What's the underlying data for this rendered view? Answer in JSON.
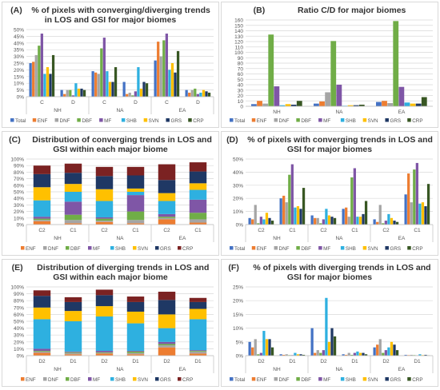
{
  "colors": {
    "Total": "#4472c4",
    "ENF": "#ed7d31",
    "DNF": "#a5a5a5",
    "DBF": "#70ad47",
    "MF": "#7f56a6",
    "SHB": "#2eb0e0",
    "SVN": "#ffc000",
    "GRS": "#1f3864",
    "CRP": "#385723",
    "CRP_stack": "#7b2222",
    "GRS_stack": "#203864"
  },
  "chart_data": [
    {
      "id": "A",
      "type": "bar",
      "title": "(A)    % of pixels with converging/diverging trends\nin LOS and GSI for major biomes",
      "categories": [
        "C",
        "D",
        "C",
        "D",
        "C",
        "D"
      ],
      "groups": [
        "NH",
        "NA",
        "EA"
      ],
      "ylim": [
        0,
        50
      ],
      "yticks": [
        "0%",
        "5%",
        "10%",
        "15%",
        "20%",
        "25%",
        "30%",
        "35%",
        "40%",
        "45%",
        "50%"
      ],
      "series": [
        {
          "name": "Total",
          "values": [
            25,
            5,
            19,
            11,
            27,
            5
          ]
        },
        {
          "name": "ENF",
          "values": [
            26,
            2,
            18,
            2,
            41,
            3
          ]
        },
        {
          "name": "DNF",
          "values": [
            31,
            5,
            17,
            3,
            30,
            5
          ]
        },
        {
          "name": "DBF",
          "values": [
            38,
            5,
            36,
            1,
            42,
            6
          ]
        },
        {
          "name": "MF",
          "values": [
            47,
            1,
            44,
            4,
            47,
            2
          ]
        },
        {
          "name": "SHB",
          "values": [
            17,
            10,
            19,
            22,
            20,
            3
          ]
        },
        {
          "name": "SVN",
          "values": [
            22,
            6,
            11,
            6,
            25,
            5
          ]
        },
        {
          "name": "GRS",
          "values": [
            17,
            6,
            11,
            11,
            18,
            4
          ]
        },
        {
          "name": "CRP",
          "values": [
            31,
            5,
            22,
            10,
            34,
            3
          ]
        }
      ],
      "legend": [
        "Total",
        "ENF",
        "DNF",
        "DBF",
        "MF",
        "SHB",
        "SVN",
        "GRS",
        "CRP"
      ]
    },
    {
      "id": "B",
      "type": "bar",
      "title": "(B)              Ratio C/D for major biomes",
      "categories": [
        "NH",
        "NA",
        "EA"
      ],
      "groups": [],
      "ylim": [
        0,
        160
      ],
      "yticks": [
        "0",
        "10",
        "20",
        "30",
        "40",
        "50",
        "60",
        "70",
        "80",
        "90",
        "100",
        "110",
        "120",
        "130",
        "140",
        "150",
        "160"
      ],
      "series": [
        {
          "name": "Total",
          "values": [
            4,
            5,
            8
          ]
        },
        {
          "name": "ENF",
          "values": [
            10,
            9,
            10
          ]
        },
        {
          "name": "DNF",
          "values": [
            5,
            26,
            6
          ]
        },
        {
          "name": "DBF",
          "values": [
            133,
            121,
            158
          ]
        },
        {
          "name": "MF",
          "values": [
            37,
            40,
            36
          ]
        },
        {
          "name": "SHB",
          "values": [
            2,
            1,
            7
          ]
        },
        {
          "name": "SVN",
          "values": [
            4,
            2,
            5
          ]
        },
        {
          "name": "GRS",
          "values": [
            3,
            2,
            5
          ]
        },
        {
          "name": "CRP",
          "values": [
            10,
            3,
            17
          ]
        }
      ],
      "legend": [
        "Total",
        "ENF",
        "DNF",
        "DBF",
        "MF",
        "SHB",
        "SVN",
        "GRS",
        "CRP"
      ]
    },
    {
      "id": "C",
      "type": "bar",
      "stacked": true,
      "title": "(C)     Distribution of converging trends in LOS and\nGSI within each major biome",
      "categories": [
        "C2",
        "C1",
        "C2",
        "C1",
        "C2",
        "C1"
      ],
      "groups": [
        "NH",
        "NA",
        "EA"
      ],
      "ylim": [
        0,
        100
      ],
      "yticks": [
        "0%",
        "10%",
        "20%",
        "30%",
        "40%",
        "50%",
        "60%",
        "70%",
        "80%",
        "90%",
        "100%"
      ],
      "series": [
        {
          "name": "ENF",
          "values": [
            5,
            2,
            4,
            2,
            8,
            3
          ]
        },
        {
          "name": "DNF",
          "values": [
            2,
            5,
            2,
            5,
            2,
            5
          ]
        },
        {
          "name": "DBF",
          "values": [
            2,
            8,
            3,
            13,
            2,
            10
          ]
        },
        {
          "name": "MF",
          "values": [
            3,
            20,
            2,
            25,
            4,
            20
          ]
        },
        {
          "name": "SHB",
          "values": [
            25,
            15,
            25,
            5,
            20,
            15
          ]
        },
        {
          "name": "SVN",
          "values": [
            20,
            12,
            18,
            5,
            12,
            10
          ]
        },
        {
          "name": "GRS",
          "values": [
            20,
            17,
            20,
            20,
            20,
            18
          ]
        },
        {
          "name": "CRP",
          "values": [
            13,
            14,
            14,
            13,
            24,
            14
          ]
        }
      ],
      "legend": [
        "ENF",
        "DNF",
        "DBF",
        "MF",
        "SHB",
        "SVN",
        "GRS",
        "CRP"
      ]
    },
    {
      "id": "D",
      "type": "bar",
      "title": "(D)    % of pixels with converging trends in LOS and\nGSI for major biomes",
      "categories": [
        "C2",
        "C1",
        "C2",
        "C1",
        "C2",
        "C1"
      ],
      "groups": [
        "NH",
        "NA",
        "EA"
      ],
      "ylim": [
        0,
        50
      ],
      "yticks": [
        "0%",
        "10%",
        "20%",
        "30%",
        "40%",
        "50%"
      ],
      "series": [
        {
          "name": "Total",
          "values": [
            5,
            20,
            7,
            12,
            4,
            23
          ]
        },
        {
          "name": "ENF",
          "values": [
            4,
            22,
            5,
            13,
            2,
            39
          ]
        },
        {
          "name": "DNF",
          "values": [
            15,
            17,
            5,
            6,
            15,
            17
          ]
        },
        {
          "name": "DBF",
          "values": [
            1,
            38,
            1,
            36,
            1,
            42
          ]
        },
        {
          "name": "MF",
          "values": [
            6,
            46,
            4,
            43,
            3,
            47
          ]
        },
        {
          "name": "SHB",
          "values": [
            4,
            13,
            12,
            6,
            8,
            16
          ]
        },
        {
          "name": "SVN",
          "values": [
            9,
            14,
            7,
            6,
            5,
            17
          ]
        },
        {
          "name": "GRS",
          "values": [
            5,
            12,
            6,
            8,
            3,
            14
          ]
        },
        {
          "name": "CRP",
          "values": [
            3,
            28,
            5,
            18,
            2,
            31
          ]
        }
      ],
      "legend": [
        "Total",
        "ENF",
        "DNF",
        "DBF",
        "MF",
        "SHB",
        "SVN",
        "GRS",
        "CRP"
      ]
    },
    {
      "id": "E",
      "type": "bar",
      "stacked": true,
      "title": "(E)      Distribution of diverging trends in LOS and\nGSI within each major biome",
      "categories": [
        "D2",
        "D1",
        "D2",
        "D1",
        "D2",
        "D1"
      ],
      "groups": [
        "NH",
        "NA",
        "EA"
      ],
      "ylim": [
        0,
        100
      ],
      "yticks": [
        "0%",
        "10%",
        "20%",
        "30%",
        "40%",
        "50%",
        "60%",
        "70%",
        "80%",
        "90%",
        "100%"
      ],
      "series": [
        {
          "name": "ENF",
          "values": [
            4,
            2,
            3,
            2,
            12,
            3
          ]
        },
        {
          "name": "DNF",
          "values": [
            2,
            2,
            1,
            2,
            3,
            3
          ]
        },
        {
          "name": "DBF",
          "values": [
            1,
            1,
            1,
            2,
            2,
            1
          ]
        },
        {
          "name": "MF",
          "values": [
            3,
            1,
            2,
            1,
            3,
            1
          ]
        },
        {
          "name": "SHB",
          "values": [
            43,
            44,
            50,
            40,
            20,
            45
          ]
        },
        {
          "name": "SVN",
          "values": [
            17,
            15,
            15,
            17,
            20,
            15
          ]
        },
        {
          "name": "GRS",
          "values": [
            17,
            13,
            16,
            14,
            21,
            10
          ]
        },
        {
          "name": "CRP",
          "values": [
            8,
            7,
            8,
            8,
            12,
            6
          ]
        }
      ],
      "legend": [
        "ENF",
        "DNF",
        "DBF",
        "MF",
        "SHB",
        "SVN",
        "GRS",
        "CRP"
      ]
    },
    {
      "id": "F",
      "type": "bar",
      "title": "(F)      % of pixels with diverging trends in LOS and\nGSI for major biomes",
      "categories": [
        "D2",
        "D1",
        "D2",
        "D1",
        "D2",
        "D1"
      ],
      "groups": [
        "NH",
        "NA",
        "EA"
      ],
      "ylim": [
        0,
        25
      ],
      "yticks": [
        "0%",
        "5%",
        "10%",
        "15%",
        "20%",
        "25%"
      ],
      "series": [
        {
          "name": "Total",
          "values": [
            5,
            0.5,
            10,
            0.5,
            3,
            0.3
          ]
        },
        {
          "name": "ENF",
          "values": [
            3,
            0.3,
            1,
            0.3,
            4,
            0.2
          ]
        },
        {
          "name": "DNF",
          "values": [
            6,
            0.5,
            2,
            1,
            6,
            0.3
          ]
        },
        {
          "name": "DBF",
          "values": [
            0.5,
            0.2,
            1,
            0.3,
            1,
            0.2
          ]
        },
        {
          "name": "MF",
          "values": [
            1,
            0.2,
            2,
            1,
            2,
            0.1
          ]
        },
        {
          "name": "SHB",
          "values": [
            9,
            1,
            21,
            1.5,
            3,
            0.5
          ]
        },
        {
          "name": "SVN",
          "values": [
            6,
            0.5,
            5,
            1,
            5,
            0.2
          ]
        },
        {
          "name": "GRS",
          "values": [
            6,
            0.5,
            10,
            1,
            4,
            0.3
          ]
        },
        {
          "name": "CRP",
          "values": [
            3,
            0.3,
            7,
            0.5,
            2,
            0.1
          ]
        }
      ],
      "legend": [
        "Total",
        "ENF",
        "DNF",
        "DBF",
        "MF",
        "SHB",
        "SVN",
        "GRS",
        "CRP"
      ]
    }
  ]
}
